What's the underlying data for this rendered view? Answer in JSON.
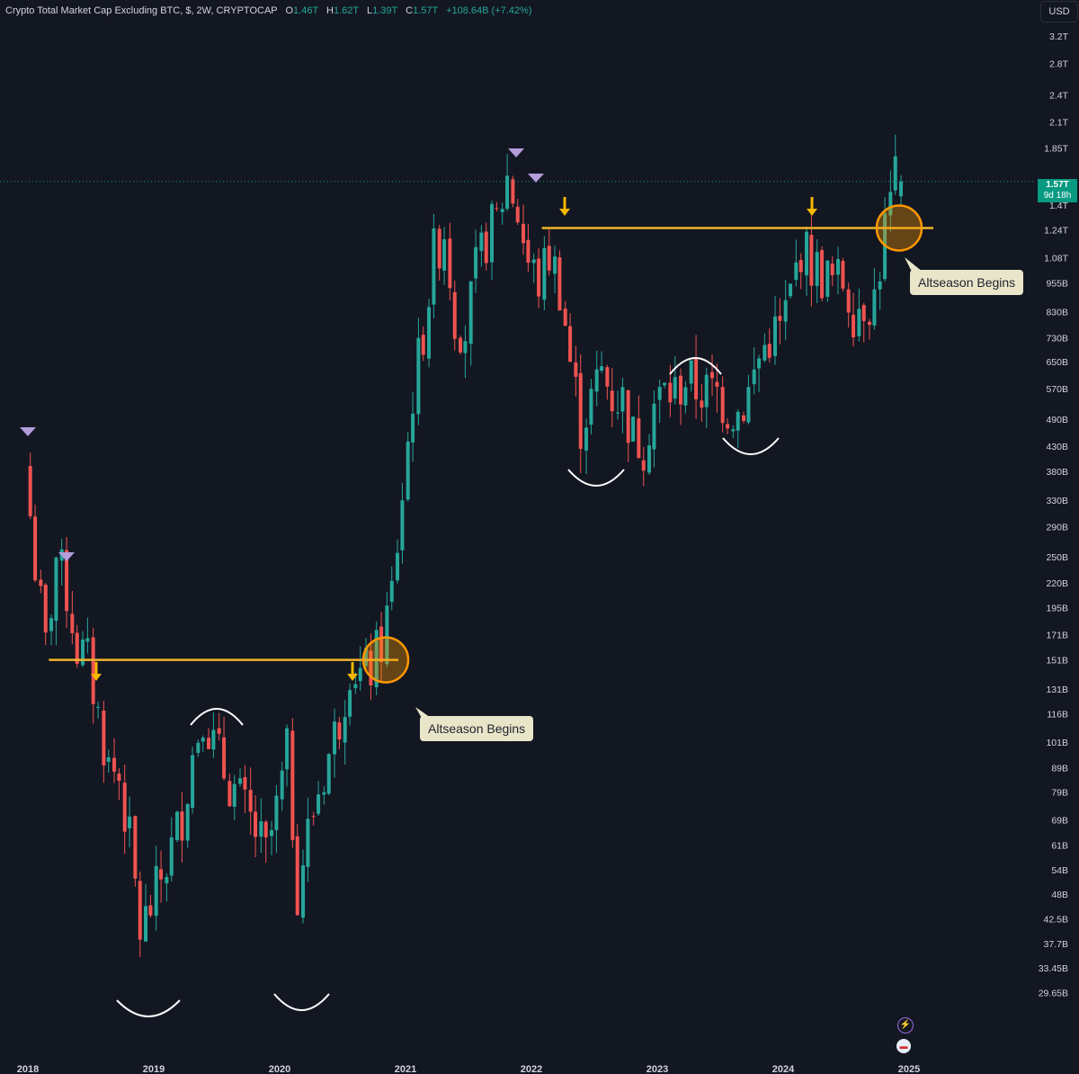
{
  "header": {
    "symbol": "Crypto Total Market Cap Excluding BTC, $, 2W, CRYPTOCAP",
    "o_label": "O",
    "o_value": "1.46T",
    "h_label": "H",
    "h_value": "1.62T",
    "l_label": "L",
    "l_value": "1.39T",
    "c_label": "C",
    "c_value": "1.57T",
    "change": "+108.64B (+7.42%)"
  },
  "currency_button": "USD",
  "price_tag": {
    "price": "1.57T",
    "countdown": "9d 18h"
  },
  "annotations": {
    "callout1": "Altseason Begins",
    "callout2": "Altseason Begins"
  },
  "colors": {
    "background": "#131722",
    "up": "#26a69a",
    "down": "#ef5350",
    "level_line": "#f0b429",
    "top_marker": "#b39ddb",
    "callout_bg": "#e9e5c9"
  },
  "chart_data": {
    "type": "candlestick",
    "title": "Crypto Total Market Cap Excluding BTC, $, 2W, CRYPTOCAP",
    "scale": "log",
    "y_ticks": [
      "3.2T",
      "2.8T",
      "2.4T",
      "2.1T",
      "1.85T",
      "1.4T",
      "1.24T",
      "1.08T",
      "955B",
      "830B",
      "730B",
      "650B",
      "570B",
      "490B",
      "430B",
      "380B",
      "330B",
      "290B",
      "250B",
      "220B",
      "195B",
      "171B",
      "151B",
      "131B",
      "116B",
      "101B",
      "89B",
      "79B",
      "69B",
      "61B",
      "54B",
      "48B",
      "42.5B",
      "37.7B",
      "33.45B",
      "29.65B"
    ],
    "x_ticks": [
      "2018",
      "2019",
      "2020",
      "2021",
      "2022",
      "2023",
      "2024",
      "2025"
    ],
    "x_range": [
      "2018-01",
      "2025-04"
    ],
    "y_range": [
      28000000000,
      3300000000000
    ],
    "path_monthly": [
      {
        "date": "2018-01",
        "value": 390000000000
      },
      {
        "date": "2018-02",
        "value": 240000000000
      },
      {
        "date": "2018-03",
        "value": 160000000000
      },
      {
        "date": "2018-04",
        "value": 250000000000
      },
      {
        "date": "2018-05",
        "value": 210000000000
      },
      {
        "date": "2018-06",
        "value": 160000000000
      },
      {
        "date": "2018-07",
        "value": 150000000000
      },
      {
        "date": "2018-08",
        "value": 115000000000
      },
      {
        "date": "2018-09",
        "value": 90000000000
      },
      {
        "date": "2018-10",
        "value": 85000000000
      },
      {
        "date": "2018-11",
        "value": 62000000000
      },
      {
        "date": "2018-12",
        "value": 40000000000
      },
      {
        "date": "2019-01",
        "value": 45000000000
      },
      {
        "date": "2019-02",
        "value": 52000000000
      },
      {
        "date": "2019-03",
        "value": 60000000000
      },
      {
        "date": "2019-04",
        "value": 72000000000
      },
      {
        "date": "2019-05",
        "value": 95000000000
      },
      {
        "date": "2019-06",
        "value": 120000000000
      },
      {
        "date": "2019-07",
        "value": 100000000000
      },
      {
        "date": "2019-08",
        "value": 88000000000
      },
      {
        "date": "2019-09",
        "value": 80000000000
      },
      {
        "date": "2019-10",
        "value": 72000000000
      },
      {
        "date": "2019-11",
        "value": 65000000000
      },
      {
        "date": "2019-12",
        "value": 58000000000
      },
      {
        "date": "2020-01",
        "value": 72000000000
      },
      {
        "date": "2020-02",
        "value": 95000000000
      },
      {
        "date": "2020-03",
        "value": 50000000000
      },
      {
        "date": "2020-04",
        "value": 65000000000
      },
      {
        "date": "2020-05",
        "value": 80000000000
      },
      {
        "date": "2020-06",
        "value": 95000000000
      },
      {
        "date": "2020-07",
        "value": 115000000000
      },
      {
        "date": "2020-08",
        "value": 150000000000
      },
      {
        "date": "2020-09",
        "value": 140000000000
      },
      {
        "date": "2020-10",
        "value": 145000000000
      },
      {
        "date": "2020-11",
        "value": 165000000000
      },
      {
        "date": "2020-12",
        "value": 210000000000
      },
      {
        "date": "2021-01",
        "value": 340000000000
      },
      {
        "date": "2021-02",
        "value": 560000000000
      },
      {
        "date": "2021-03",
        "value": 760000000000
      },
      {
        "date": "2021-04",
        "value": 1100000000000
      },
      {
        "date": "2021-05",
        "value": 1250000000000
      },
      {
        "date": "2021-06",
        "value": 820000000000
      },
      {
        "date": "2021-07",
        "value": 760000000000
      },
      {
        "date": "2021-08",
        "value": 1000000000000
      },
      {
        "date": "2021-09",
        "value": 1200000000000
      },
      {
        "date": "2021-10",
        "value": 1300000000000
      },
      {
        "date": "2021-11",
        "value": 1600000000000
      },
      {
        "date": "2021-12",
        "value": 1350000000000
      },
      {
        "date": "2022-01",
        "value": 1050000000000
      },
      {
        "date": "2022-02",
        "value": 960000000000
      },
      {
        "date": "2022-03",
        "value": 1100000000000
      },
      {
        "date": "2022-04",
        "value": 950000000000
      },
      {
        "date": "2022-05",
        "value": 650000000000
      },
      {
        "date": "2022-06",
        "value": 480000000000
      },
      {
        "date": "2022-07",
        "value": 540000000000
      },
      {
        "date": "2022-08",
        "value": 620000000000
      },
      {
        "date": "2022-09",
        "value": 550000000000
      },
      {
        "date": "2022-10",
        "value": 540000000000
      },
      {
        "date": "2022-11",
        "value": 450000000000
      },
      {
        "date": "2022-12",
        "value": 440000000000
      },
      {
        "date": "2023-01",
        "value": 530000000000
      },
      {
        "date": "2023-02",
        "value": 560000000000
      },
      {
        "date": "2023-03",
        "value": 560000000000
      },
      {
        "date": "2023-04",
        "value": 600000000000
      },
      {
        "date": "2023-05",
        "value": 570000000000
      },
      {
        "date": "2023-06",
        "value": 560000000000
      },
      {
        "date": "2023-07",
        "value": 560000000000
      },
      {
        "date": "2023-08",
        "value": 520000000000
      },
      {
        "date": "2023-09",
        "value": 510000000000
      },
      {
        "date": "2023-10",
        "value": 560000000000
      },
      {
        "date": "2023-11",
        "value": 660000000000
      },
      {
        "date": "2023-12",
        "value": 740000000000
      },
      {
        "date": "2024-01",
        "value": 760000000000
      },
      {
        "date": "2024-02",
        "value": 900000000000
      },
      {
        "date": "2024-03",
        "value": 1150000000000
      },
      {
        "date": "2024-04",
        "value": 1050000000000
      },
      {
        "date": "2024-05",
        "value": 1000000000000
      },
      {
        "date": "2024-06",
        "value": 960000000000
      },
      {
        "date": "2024-07",
        "value": 970000000000
      },
      {
        "date": "2024-08",
        "value": 850000000000
      },
      {
        "date": "2024-09",
        "value": 880000000000
      },
      {
        "date": "2024-10",
        "value": 890000000000
      },
      {
        "date": "2024-11",
        "value": 1250000000000
      },
      {
        "date": "2024-12",
        "value": 1570000000000
      }
    ],
    "levels": [
      {
        "value": 151000000000,
        "from": "2018-03",
        "to": "2021-01"
      },
      {
        "value": 1250000000000,
        "from": "2022-02",
        "to": "2025-04"
      }
    ],
    "current_price": 1570000000000
  }
}
